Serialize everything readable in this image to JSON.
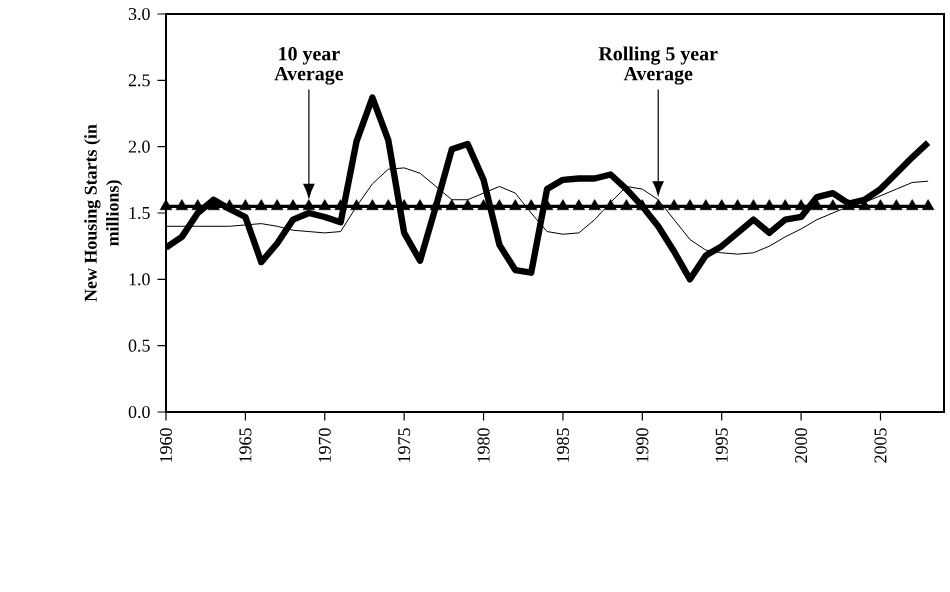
{
  "chart_data": {
    "type": "line",
    "ylabel": "New Housing Starts (in millions)",
    "x": [
      1960,
      1961,
      1962,
      1963,
      1964,
      1965,
      1966,
      1967,
      1968,
      1969,
      1970,
      1971,
      1972,
      1973,
      1974,
      1975,
      1976,
      1977,
      1978,
      1979,
      1980,
      1981,
      1982,
      1983,
      1984,
      1985,
      1986,
      1987,
      1988,
      1989,
      1990,
      1991,
      1992,
      1993,
      1994,
      1995,
      1996,
      1997,
      1998,
      1999,
      2000,
      2001,
      2002,
      2003,
      2004,
      2005,
      2006,
      2007,
      2008
    ],
    "series": [
      {
        "color": "#000000",
        "marker": "none",
        "values": [
          1.24,
          1.32,
          1.5,
          1.6,
          1.53,
          1.47,
          1.13,
          1.27,
          1.45,
          1.5,
          1.47,
          1.43,
          2.04,
          2.37,
          2.05,
          1.35,
          1.14,
          1.55,
          1.98,
          2.02,
          1.75,
          1.26,
          1.07,
          1.05,
          1.68,
          1.75,
          1.76,
          1.76,
          1.79,
          1.68,
          1.55,
          1.4,
          1.21,
          1.0,
          1.18,
          1.25,
          1.35,
          1.45,
          1.35,
          1.45,
          1.47,
          1.62,
          1.65,
          1.57,
          1.6,
          1.68,
          1.8,
          1.92,
          2.03
        ]
      },
      {
        "name": "Rolling 5 year Average",
        "color": "#000000",
        "marker": "none",
        "values": [
          1.4,
          1.4,
          1.4,
          1.4,
          1.4,
          1.41,
          1.42,
          1.4,
          1.37,
          1.36,
          1.35,
          1.36,
          1.55,
          1.72,
          1.83,
          1.84,
          1.8,
          1.7,
          1.6,
          1.6,
          1.65,
          1.7,
          1.65,
          1.5,
          1.36,
          1.34,
          1.35,
          1.45,
          1.58,
          1.7,
          1.68,
          1.6,
          1.45,
          1.3,
          1.22,
          1.2,
          1.19,
          1.2,
          1.25,
          1.32,
          1.38,
          1.45,
          1.5,
          1.55,
          1.58,
          1.63,
          1.68,
          1.73,
          1.74
        ]
      },
      {
        "name": "10 year Average",
        "color": "#000000",
        "marker": "triangle",
        "values": [
          1.55,
          1.55,
          1.55,
          1.55,
          1.55,
          1.55,
          1.55,
          1.55,
          1.55,
          1.55,
          1.55,
          1.55,
          1.55,
          1.55,
          1.55,
          1.55,
          1.55,
          1.55,
          1.55,
          1.55,
          1.55,
          1.55,
          1.55,
          1.55,
          1.55,
          1.55,
          1.55,
          1.55,
          1.55,
          1.55,
          1.55,
          1.55,
          1.55,
          1.55,
          1.55,
          1.55,
          1.55,
          1.55,
          1.55,
          1.55,
          1.55,
          1.55,
          1.55,
          1.55,
          1.55,
          1.55,
          1.55,
          1.55,
          1.55
        ]
      }
    ],
    "xlim": [
      1960,
      2009
    ],
    "xticks": [
      1960,
      1965,
      1970,
      1975,
      1980,
      1985,
      1990,
      1995,
      2000,
      2005
    ],
    "ylim": [
      0,
      3
    ],
    "yticks": [
      {
        "value": 0,
        "label": "0.0"
      },
      {
        "value": 0.5,
        "label": "0.5"
      },
      {
        "value": 1,
        "label": "1.0"
      },
      {
        "value": 1.5,
        "label": "1.5"
      },
      {
        "value": 2,
        "label": "2.0"
      },
      {
        "value": 2.5,
        "label": "2.5"
      },
      {
        "value": 3,
        "label": "3.0"
      }
    ],
    "grid": false,
    "legend": false
  }
}
